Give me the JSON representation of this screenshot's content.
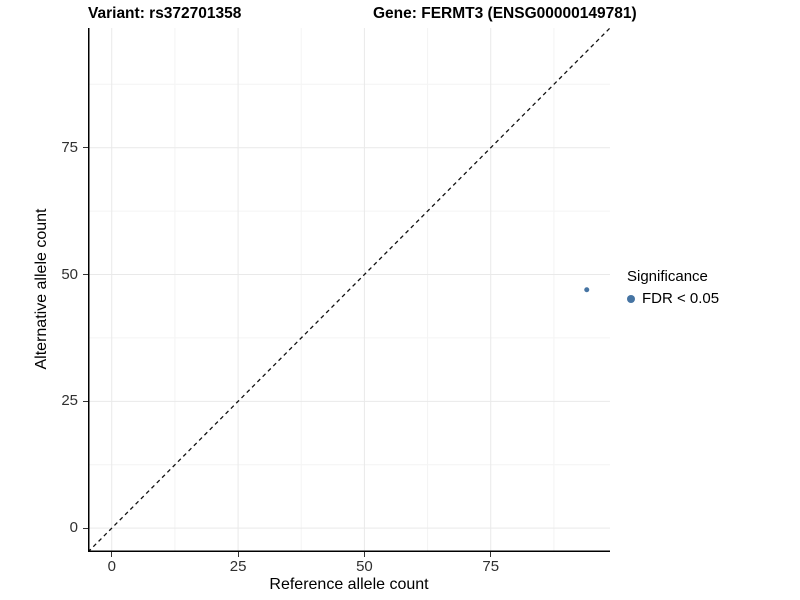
{
  "chart_data": {
    "type": "scatter",
    "title_left": "Variant: rs372701358",
    "title_right": "Gene: FERMT3 (ENSG00000149781)",
    "xlabel": "Reference allele count",
    "ylabel": "Alternative allele count",
    "xlim": [
      -4.7,
      98.6
    ],
    "ylim": [
      -4.7,
      98.6
    ],
    "x_ticks": [
      0,
      25,
      50,
      75
    ],
    "y_ticks": [
      0,
      25,
      50,
      75
    ],
    "minor_ticks": [
      12.5,
      37.5,
      62.5,
      87.5
    ],
    "grid": "major+minor",
    "identity_line": {
      "slope": 1,
      "intercept": 0,
      "style": "dashed",
      "color": "#111111"
    },
    "points": [
      {
        "x": 94,
        "y": 47,
        "series": "FDR < 0.05",
        "color": "#4674A3",
        "radius": 2.5
      }
    ],
    "legend": {
      "title": "Significance",
      "position": "right",
      "items": [
        {
          "label": "FDR < 0.05",
          "color": "#4674A3"
        }
      ]
    },
    "colors": {
      "grid_major": "#E9E9E9",
      "grid_minor": "#F4F4F4",
      "axis_line": "#000000",
      "tick_text": "#303030"
    }
  }
}
